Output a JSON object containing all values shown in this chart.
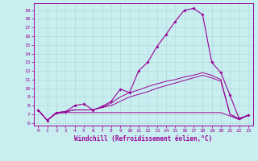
{
  "xlabel": "Windchill (Refroidissement éolien,°C)",
  "background_color": "#c8eef0",
  "grid_color": "#b8dde0",
  "line_color": "#990099",
  "x_ticks": [
    0,
    1,
    2,
    3,
    4,
    5,
    6,
    7,
    8,
    9,
    10,
    11,
    12,
    13,
    14,
    15,
    16,
    17,
    18,
    19,
    20,
    21,
    22,
    23
  ],
  "y_ticks": [
    6,
    7,
    8,
    9,
    10,
    11,
    12,
    13,
    14,
    15,
    16,
    17,
    18,
    19
  ],
  "ylim": [
    5.7,
    19.8
  ],
  "xlim": [
    -0.5,
    23.5
  ],
  "line1_x": [
    0,
    1,
    2,
    3,
    4,
    5,
    6,
    7,
    8,
    9,
    10,
    11,
    12,
    13,
    14,
    15,
    16,
    17,
    18,
    19,
    20,
    21,
    22,
    23
  ],
  "line1_y": [
    7.5,
    6.3,
    7.2,
    7.3,
    8.0,
    8.2,
    7.5,
    7.9,
    8.5,
    9.9,
    9.5,
    12.0,
    13.0,
    14.8,
    16.2,
    17.7,
    19.0,
    19.2,
    18.5,
    13.0,
    11.8,
    9.2,
    6.5,
    6.9
  ],
  "line2_x": [
    0,
    1,
    2,
    3,
    4,
    5,
    6,
    7,
    8,
    9,
    10,
    11,
    12,
    13,
    14,
    15,
    16,
    17,
    18,
    19,
    20,
    21,
    22,
    23
  ],
  "line2_y": [
    7.5,
    6.3,
    7.2,
    7.3,
    7.5,
    7.5,
    7.5,
    7.8,
    8.3,
    9.0,
    9.5,
    9.8,
    10.2,
    10.5,
    10.8,
    11.0,
    11.3,
    11.5,
    11.8,
    11.5,
    11.0,
    7.0,
    6.5,
    6.9
  ],
  "line3_x": [
    0,
    1,
    2,
    3,
    4,
    5,
    6,
    7,
    8,
    9,
    10,
    11,
    12,
    13,
    14,
    15,
    16,
    17,
    18,
    19,
    20,
    21,
    22,
    23
  ],
  "line3_y": [
    7.5,
    6.3,
    7.2,
    7.3,
    7.5,
    7.5,
    7.5,
    7.8,
    8.0,
    8.5,
    9.0,
    9.3,
    9.6,
    10.0,
    10.3,
    10.6,
    10.9,
    11.2,
    11.5,
    11.2,
    10.8,
    7.0,
    6.4,
    6.9
  ],
  "line4_x": [
    0,
    1,
    2,
    3,
    4,
    5,
    6,
    7,
    8,
    9,
    10,
    11,
    12,
    13,
    14,
    15,
    16,
    17,
    18,
    19,
    20,
    21,
    22,
    23
  ],
  "line4_y": [
    7.5,
    6.3,
    7.1,
    7.2,
    7.2,
    7.2,
    7.2,
    7.2,
    7.2,
    7.2,
    7.2,
    7.2,
    7.2,
    7.2,
    7.2,
    7.2,
    7.2,
    7.2,
    7.2,
    7.2,
    7.2,
    6.8,
    6.4,
    6.9
  ]
}
